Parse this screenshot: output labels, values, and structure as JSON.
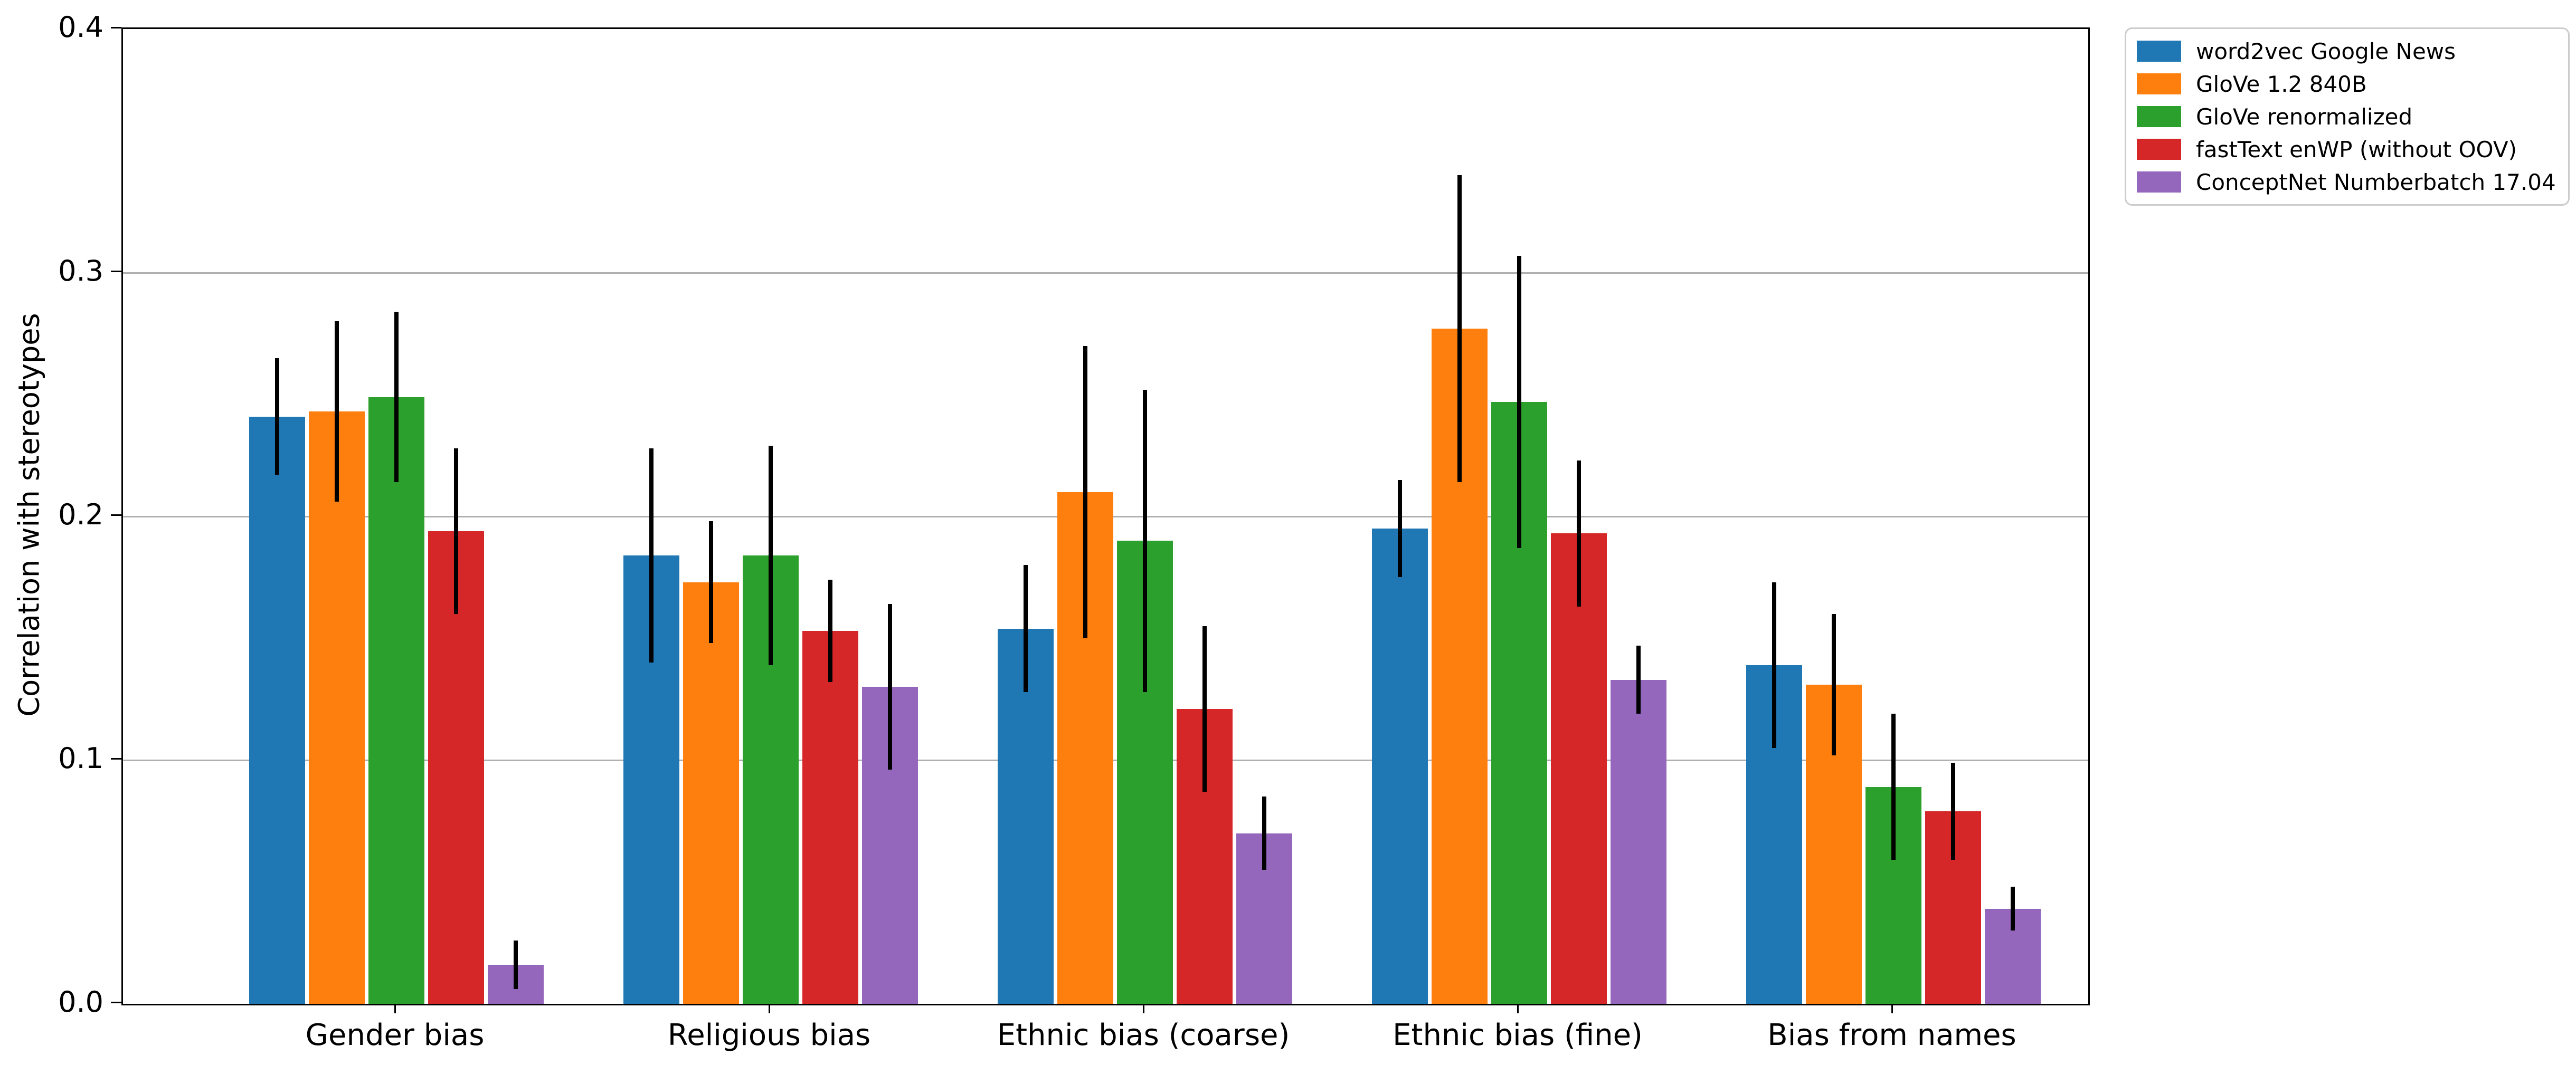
{
  "figure": {
    "background": "#ffffff",
    "plot_border_color": "#000000"
  },
  "chart_data": {
    "type": "bar",
    "title": "",
    "xlabel": "",
    "ylabel": "Correlation with stereotypes",
    "ylim": [
      0.0,
      0.4
    ],
    "yticks": [
      "0.0",
      "0.1",
      "0.2",
      "0.3",
      "0.4"
    ],
    "grid": "horizontal",
    "grid_color": "#b0b0b0",
    "error_bar_color": "#000000",
    "legend_position": "outside-upper-right",
    "categories": [
      "Gender bias",
      "Religious bias",
      "Ethnic bias (coarse)",
      "Ethnic bias (fine)",
      "Bias from names"
    ],
    "series": [
      {
        "name": "word2vec Google News",
        "color": "#1f77b4",
        "values": [
          0.241,
          0.184,
          0.154,
          0.195,
          0.139
        ],
        "errors": [
          0.024,
          0.044,
          0.026,
          0.02,
          0.034
        ]
      },
      {
        "name": "GloVe 1.2 840B",
        "color": "#ff7f0e",
        "values": [
          0.243,
          0.173,
          0.21,
          0.277,
          0.131
        ],
        "errors": [
          0.037,
          0.025,
          0.06,
          0.063,
          0.029
        ]
      },
      {
        "name": "GloVe renormalized",
        "color": "#2ca02c",
        "values": [
          0.249,
          0.184,
          0.19,
          0.247,
          0.089
        ],
        "errors": [
          0.035,
          0.045,
          0.062,
          0.06,
          0.03
        ]
      },
      {
        "name": "fastText enWP (without OOV)",
        "color": "#d62728",
        "values": [
          0.194,
          0.153,
          0.121,
          0.193,
          0.079
        ],
        "errors": [
          0.034,
          0.021,
          0.034,
          0.03,
          0.02
        ]
      },
      {
        "name": "ConceptNet Numberbatch 17.04",
        "color": "#9467bd",
        "values": [
          0.016,
          0.13,
          0.07,
          0.133,
          0.039
        ],
        "errors": [
          0.01,
          0.034,
          0.015,
          0.014,
          0.009
        ]
      }
    ]
  }
}
